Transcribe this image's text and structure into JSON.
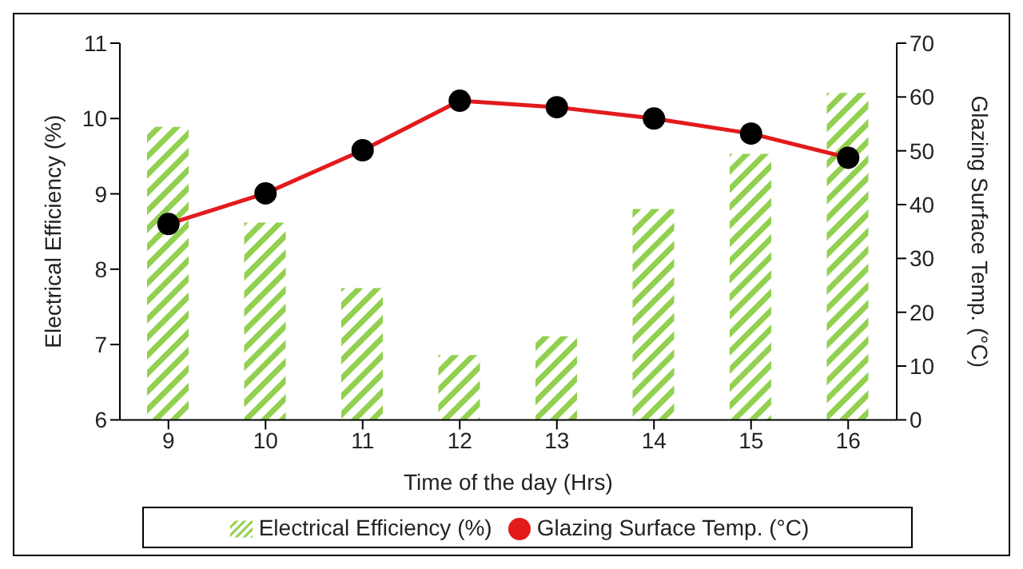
{
  "chart_data": {
    "type": "bar",
    "xlabel": "Time of the day (Hrs)",
    "ylabel": "Electrical Efficiency (%)",
    "y2label": "Glazing Surface Temp. (°C)",
    "categories": [
      "9",
      "10",
      "11",
      "12",
      "13",
      "14",
      "15",
      "16"
    ],
    "series": [
      {
        "name": "Electrical Efficiency (%)",
        "type": "bar",
        "color": "#92d050",
        "values": [
          9.89,
          8.62,
          7.75,
          6.86,
          7.11,
          8.8,
          9.53,
          10.34
        ]
      },
      {
        "name": "Glazing Surface Temp. (°C)",
        "type": "line",
        "axis": "y2",
        "color": "#e31a1c",
        "values": [
          36.4,
          42.1,
          50.1,
          59.3,
          58.1,
          56,
          53.2,
          48.7
        ]
      }
    ],
    "ylim": [
      6,
      11
    ],
    "yticks": [
      6,
      7,
      8,
      9,
      10,
      11
    ],
    "y2lim": [
      0,
      70
    ],
    "y2ticks": [
      0,
      10,
      20,
      30,
      40,
      50,
      60,
      70
    ],
    "marker": "circle",
    "line_style": "solid",
    "legend": "bottom",
    "grid": false
  }
}
